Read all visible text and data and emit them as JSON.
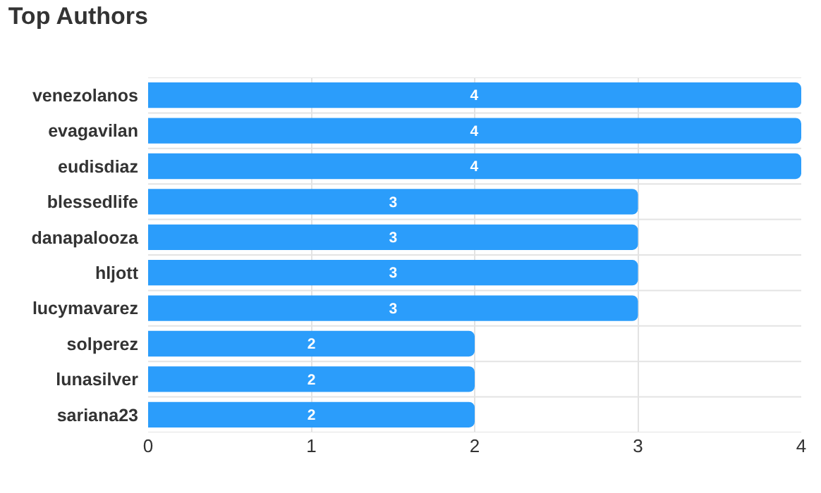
{
  "chart_data": {
    "type": "bar",
    "title": "Top Authors",
    "orientation": "horizontal",
    "categories": [
      "venezolanos",
      "evagavilan",
      "eudisdiaz",
      "blessedlife",
      "danapalooza",
      "hljott",
      "lucymavarez",
      "solperez",
      "lunasilver",
      "sariana23"
    ],
    "values": [
      4,
      4,
      4,
      3,
      3,
      3,
      3,
      2,
      2,
      2
    ],
    "color": "#2b9dfb",
    "xlim": [
      0,
      4
    ],
    "xticks": [
      0,
      1,
      2,
      3,
      4
    ],
    "grid": true,
    "data_labels": true
  }
}
